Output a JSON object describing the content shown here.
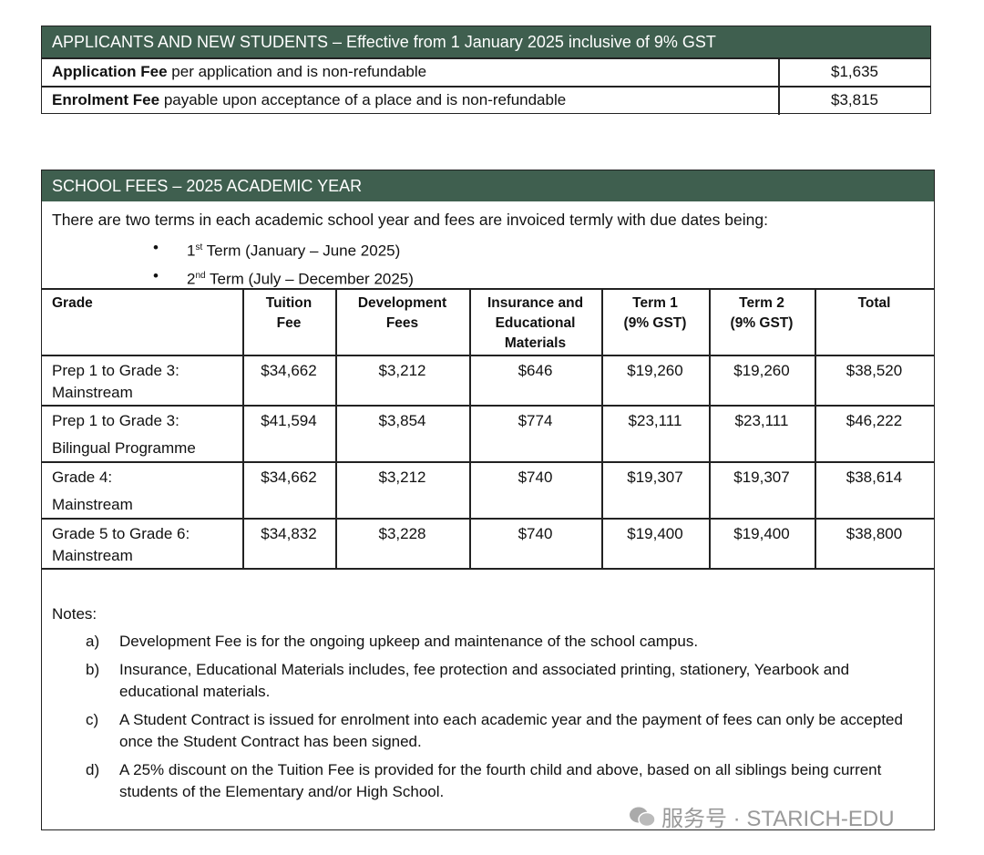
{
  "applicants": {
    "title": "APPLICANTS AND NEW STUDENTS – Effective from 1 January 2025 inclusive of 9% GST",
    "rows": [
      {
        "label_bold": "Application Fee",
        "label_rest": " per application and is non-refundable",
        "amount": "$1,635"
      },
      {
        "label_bold": "Enrolment Fee",
        "label_rest": " payable upon acceptance of a place and is non-refundable",
        "amount": "$3,815"
      }
    ]
  },
  "school_fees": {
    "title": "SCHOOL FEES – 2025 ACADEMIC YEAR",
    "intro": "There are two terms in each academic school year and fees are invoiced termly with due dates being:",
    "terms": [
      {
        "num": "1",
        "sup": "st",
        "text": " Term (January – June 2025)"
      },
      {
        "num": "2",
        "sup": "nd",
        "text": " Term (July – December 2025)"
      }
    ],
    "columns": [
      [
        "Grade"
      ],
      [
        "Tuition",
        "Fee"
      ],
      [
        "Development",
        "Fees"
      ],
      [
        "Insurance and",
        "Educational",
        "Materials"
      ],
      [
        "Term 1",
        "(9% GST)"
      ],
      [
        "Term 2",
        "(9% GST)"
      ],
      [
        "Total"
      ]
    ],
    "rows": [
      {
        "grade": [
          "Prep 1 to Grade 3:",
          "Mainstream"
        ],
        "values": [
          "$34,662",
          "$3,212",
          "$646",
          "$19,260",
          "$19,260",
          "$38,520"
        ]
      },
      {
        "grade": [
          "Prep 1 to Grade 3:",
          "Bilingual Programme"
        ],
        "values": [
          "$41,594",
          "$3,854",
          "$774",
          "$23,111",
          "$23,111",
          "$46,222"
        ]
      },
      {
        "grade": [
          "Grade 4:",
          "Mainstream"
        ],
        "values": [
          "$34,662",
          "$3,212",
          "$740",
          "$19,307",
          "$19,307",
          "$38,614"
        ]
      },
      {
        "grade": [
          "Grade 5 to Grade 6:",
          "Mainstream"
        ],
        "values": [
          "$34,832",
          "$3,228",
          "$740",
          "$19,400",
          "$19,400",
          "$38,800"
        ]
      }
    ],
    "notes_label": "Notes:",
    "notes": [
      {
        "letter": "a)",
        "text": "Development Fee is for the ongoing upkeep and maintenance of the school campus."
      },
      {
        "letter": "b)",
        "text": "Insurance, Educational Materials includes, fee protection and associated printing, stationery, Yearbook and educational materials."
      },
      {
        "letter": "c)",
        "text": "A Student Contract is issued for enrolment into each academic year and the payment of fees can only be accepted once the Student Contract has been signed."
      },
      {
        "letter": "d)",
        "text": "A 25% discount on the Tuition Fee is provided for the fourth child and above, based on all siblings being current students of the Elementary and/or High School."
      }
    ]
  },
  "watermark": "服务号 · STARICH-EDU"
}
